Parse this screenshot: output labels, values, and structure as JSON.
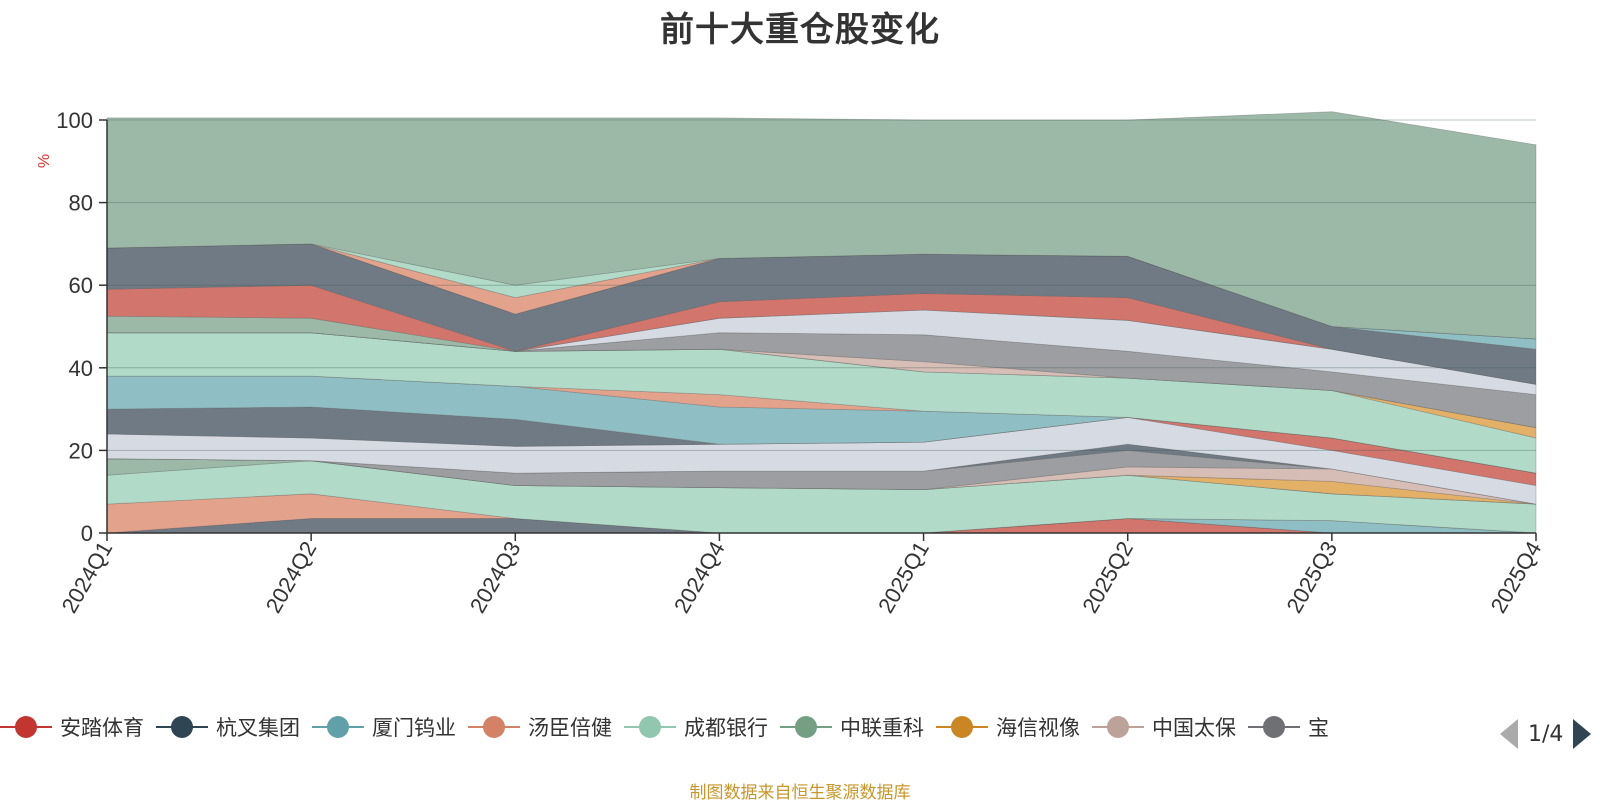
{
  "chart_data": {
    "type": "area",
    "title": "前十大重仓股变化",
    "ylabel": "%",
    "ylim": [
      0,
      100
    ],
    "yticks": [
      0,
      20,
      40,
      60,
      80,
      100
    ],
    "grid": true,
    "legend_placement": "bottom",
    "categories": [
      "2024Q1",
      "2024Q2",
      "2024Q3",
      "2024Q4",
      "2025Q1",
      "2025Q2",
      "2025Q3",
      "2025Q4"
    ],
    "series": [
      {
        "color": "#d2756d",
        "values": [
          0,
          0,
          0,
          0,
          0,
          3.5,
          0,
          0
        ]
      },
      {
        "color": "#6f7a84",
        "values": [
          0,
          3.5,
          3.5,
          0,
          0,
          0,
          0,
          0
        ]
      },
      {
        "color": "#8fbfc4",
        "values": [
          0,
          0,
          0,
          0,
          0,
          0,
          3,
          0
        ]
      },
      {
        "color": "#e3a28c",
        "values": [
          7,
          6,
          0,
          0,
          0,
          0,
          0,
          0
        ]
      },
      {
        "color": "#b1dbc8",
        "values": [
          7,
          8,
          8,
          11,
          10.5,
          10.5,
          6.5,
          7
        ]
      },
      {
        "color": "#9cb9a8",
        "values": [
          4,
          0,
          0,
          0,
          0,
          0,
          0,
          0
        ]
      },
      {
        "color": "#e3b067",
        "values": [
          0,
          0,
          0,
          0,
          0,
          0,
          3,
          0
        ]
      },
      {
        "color": "#d6bdb5",
        "values": [
          0,
          0,
          0,
          0,
          0,
          2,
          3,
          0
        ]
      },
      {
        "color": "#9c9ea2",
        "values": [
          0,
          0,
          3,
          4,
          4.5,
          4,
          0,
          0
        ]
      },
      {
        "color": "#6f7a84",
        "values": [
          0,
          0,
          0,
          0,
          0,
          1.5,
          0,
          0
        ]
      },
      {
        "color": "#d6dbe3",
        "values": [
          6,
          5.5,
          6.5,
          6.5,
          7,
          6.5,
          4.5,
          4.5
        ]
      },
      {
        "color": "#d2756d",
        "values": [
          0,
          0,
          0,
          0,
          0,
          0,
          3,
          3
        ]
      },
      {
        "color": "#6f7a84",
        "values": [
          6,
          7.5,
          6.5,
          0,
          0,
          0,
          0,
          0
        ]
      },
      {
        "color": "#8fbfc4",
        "values": [
          8,
          7.5,
          8,
          9,
          7.5,
          0,
          0,
          0
        ]
      },
      {
        "color": "#e3a28c",
        "values": [
          0,
          0,
          0,
          3,
          0,
          0,
          0,
          0
        ]
      },
      {
        "color": "#b1dbc8",
        "values": [
          10.5,
          10.5,
          8.5,
          11,
          9.5,
          9.5,
          11.5,
          8.5
        ]
      },
      {
        "color": "#e3b067",
        "values": [
          0,
          0,
          0,
          0,
          0,
          0,
          0,
          2.5
        ]
      },
      {
        "color": "#d6bdb5",
        "values": [
          0,
          0,
          0,
          0,
          2.5,
          0,
          0,
          0
        ]
      },
      {
        "color": "#9c9ea2",
        "values": [
          0,
          0,
          0,
          4,
          6.5,
          6.5,
          4.5,
          8
        ]
      },
      {
        "color": "#d6dbe3",
        "values": [
          0,
          0,
          0,
          3.5,
          6,
          7.5,
          5.5,
          2.5
        ]
      },
      {
        "color": "#9cb9a8",
        "values": [
          4,
          3.5,
          0,
          0,
          0,
          0,
          0,
          0
        ]
      },
      {
        "color": "#d2756d",
        "values": [
          6.5,
          8,
          0,
          4,
          4,
          5.5,
          0,
          0
        ]
      },
      {
        "color": "#6f7a84",
        "values": [
          10,
          10,
          9,
          10.5,
          9.5,
          10,
          5.5,
          8.5
        ]
      },
      {
        "color": "#8fbfc4",
        "values": [
          0,
          0,
          0,
          0,
          0,
          0,
          0,
          2.5
        ]
      },
      {
        "color": "#e3a28c",
        "values": [
          0,
          0,
          4,
          0,
          0,
          0,
          0,
          0
        ]
      },
      {
        "color": "#b1dbc8",
        "values": [
          0,
          0,
          3,
          0,
          0,
          0,
          0,
          0
        ]
      },
      {
        "color": "#9cb9a8",
        "values": [
          31.5,
          30.5,
          40.5,
          34,
          32.5,
          33,
          52,
          47
        ]
      }
    ]
  },
  "legend": {
    "items": [
      {
        "label": "安踏体育",
        "color": "#c23531"
      },
      {
        "label": "杭叉集团",
        "color": "#2f4554"
      },
      {
        "label": "厦门钨业",
        "color": "#61a0a8"
      },
      {
        "label": "汤臣倍健",
        "color": "#d48265"
      },
      {
        "label": "成都银行",
        "color": "#91c7ae"
      },
      {
        "label": "中联重科",
        "color": "#749f83"
      },
      {
        "label": "海信视像",
        "color": "#ca8622"
      },
      {
        "label": "中国太保",
        "color": "#bda29a"
      },
      {
        "label": "宝",
        "color": "#6e7074"
      }
    ],
    "page": "1/4"
  },
  "source_note": "制图数据来自恒生聚源数据库"
}
